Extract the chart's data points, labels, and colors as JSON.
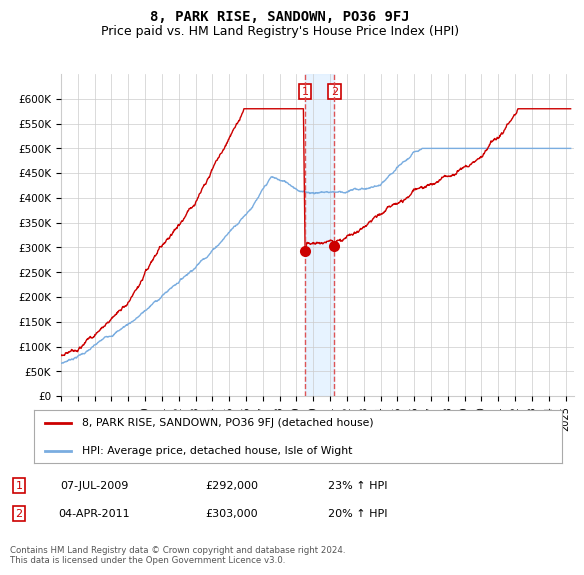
{
  "title": "8, PARK RISE, SANDOWN, PO36 9FJ",
  "subtitle": "Price paid vs. HM Land Registry's House Price Index (HPI)",
  "red_label": "8, PARK RISE, SANDOWN, PO36 9FJ (detached house)",
  "blue_label": "HPI: Average price, detached house, Isle of Wight",
  "legend_note": "Contains HM Land Registry data © Crown copyright and database right 2024.\nThis data is licensed under the Open Government Licence v3.0.",
  "annotation1_label": "1",
  "annotation1_date": "07-JUL-2009",
  "annotation1_price": "£292,000",
  "annotation1_hpi": "23% ↑ HPI",
  "annotation2_label": "2",
  "annotation2_date": "04-APR-2011",
  "annotation2_price": "£303,000",
  "annotation2_hpi": "20% ↑ HPI",
  "xlim_start": 1995.0,
  "xlim_end": 2025.5,
  "ylim_bottom": 0,
  "ylim_top": 650000,
  "yticks": [
    0,
    50000,
    100000,
    150000,
    200000,
    250000,
    300000,
    350000,
    400000,
    450000,
    500000,
    550000,
    600000
  ],
  "ytick_labels": [
    "£0",
    "£50K",
    "£100K",
    "£150K",
    "£200K",
    "£250K",
    "£300K",
    "£350K",
    "£400K",
    "£450K",
    "£500K",
    "£550K",
    "£600K"
  ],
  "vline1_x": 2009.52,
  "vline2_x": 2011.25,
  "dot1_x": 2009.52,
  "dot1_y": 292000,
  "dot2_x": 2011.25,
  "dot2_y": 303000,
  "red_color": "#cc0000",
  "blue_color": "#7aade0",
  "vline_color": "#dd4444",
  "shade_color": "#ddeeff",
  "bg_color": "#ffffff",
  "grid_color": "#cccccc",
  "title_fontsize": 10,
  "subtitle_fontsize": 9
}
